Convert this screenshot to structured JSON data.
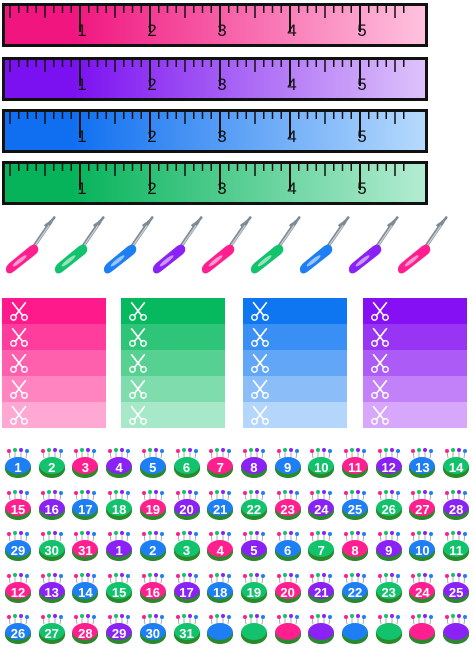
{
  "colors": {
    "pink": "#ff1f8f",
    "purple": "#8b22f5",
    "blue": "#1e7ff5",
    "green": "#12c26c",
    "cushion_base": "#2a8a2a"
  },
  "rulers": [
    {
      "name": "pink",
      "dark": "#f0157f",
      "light": "#ffc2de",
      "numbers": [
        "1",
        "2",
        "3",
        "4",
        "5"
      ]
    },
    {
      "name": "purple",
      "dark": "#7b10f0",
      "light": "#dcc3fb",
      "numbers": [
        "1",
        "2",
        "3",
        "4",
        "5"
      ]
    },
    {
      "name": "blue",
      "dark": "#0f6ff0",
      "light": "#b6dafd",
      "numbers": [
        "1",
        "2",
        "3",
        "4",
        "5"
      ]
    },
    {
      "name": "green",
      "dark": "#06b35a",
      "light": "#b3ecd2",
      "numbers": [
        "1",
        "2",
        "3",
        "4",
        "5"
      ]
    }
  ],
  "seam_rippers": [
    "pink",
    "green",
    "blue",
    "purple",
    "pink",
    "green",
    "blue",
    "purple",
    "pink"
  ],
  "swatches": [
    {
      "name": "pink",
      "shades": [
        "#ff1a8c",
        "#ff3d9d",
        "#ff60ae",
        "#ff84c0",
        "#ffa8d3"
      ]
    },
    {
      "name": "green",
      "shades": [
        "#06b95f",
        "#2ec578",
        "#56d192",
        "#7edcad",
        "#a6e8c7"
      ]
    },
    {
      "name": "blue",
      "shades": [
        "#0f76f2",
        "#3a8ff5",
        "#62a7f7",
        "#8bbef9",
        "#b4d6fb"
      ]
    },
    {
      "name": "purple",
      "shades": [
        "#8410f3",
        "#9835f5",
        "#ad5bf7",
        "#c281f9",
        "#d6a7fb"
      ]
    }
  ],
  "pincushions": [
    [
      "1",
      "2",
      "3",
      "4",
      "5",
      "6",
      "7",
      "8",
      "9",
      "10",
      "11",
      "12",
      "13",
      "14"
    ],
    [
      "15",
      "16",
      "17",
      "18",
      "19",
      "20",
      "21",
      "22",
      "23",
      "24",
      "25",
      "26",
      "27",
      "28"
    ],
    [
      "29",
      "30",
      "31",
      "1",
      "2",
      "3",
      "4",
      "5",
      "6",
      "7",
      "8",
      "9",
      "10",
      "11"
    ],
    [
      "12",
      "13",
      "14",
      "15",
      "16",
      "17",
      "18",
      "19",
      "20",
      "21",
      "22",
      "23",
      "24",
      "25"
    ],
    [
      "26",
      "27",
      "28",
      "29",
      "30",
      "31",
      "",
      "",
      "",
      "",
      "",
      "",
      "",
      ""
    ]
  ],
  "cushion_color_cycle": [
    "blue",
    "green",
    "pink",
    "purple"
  ]
}
